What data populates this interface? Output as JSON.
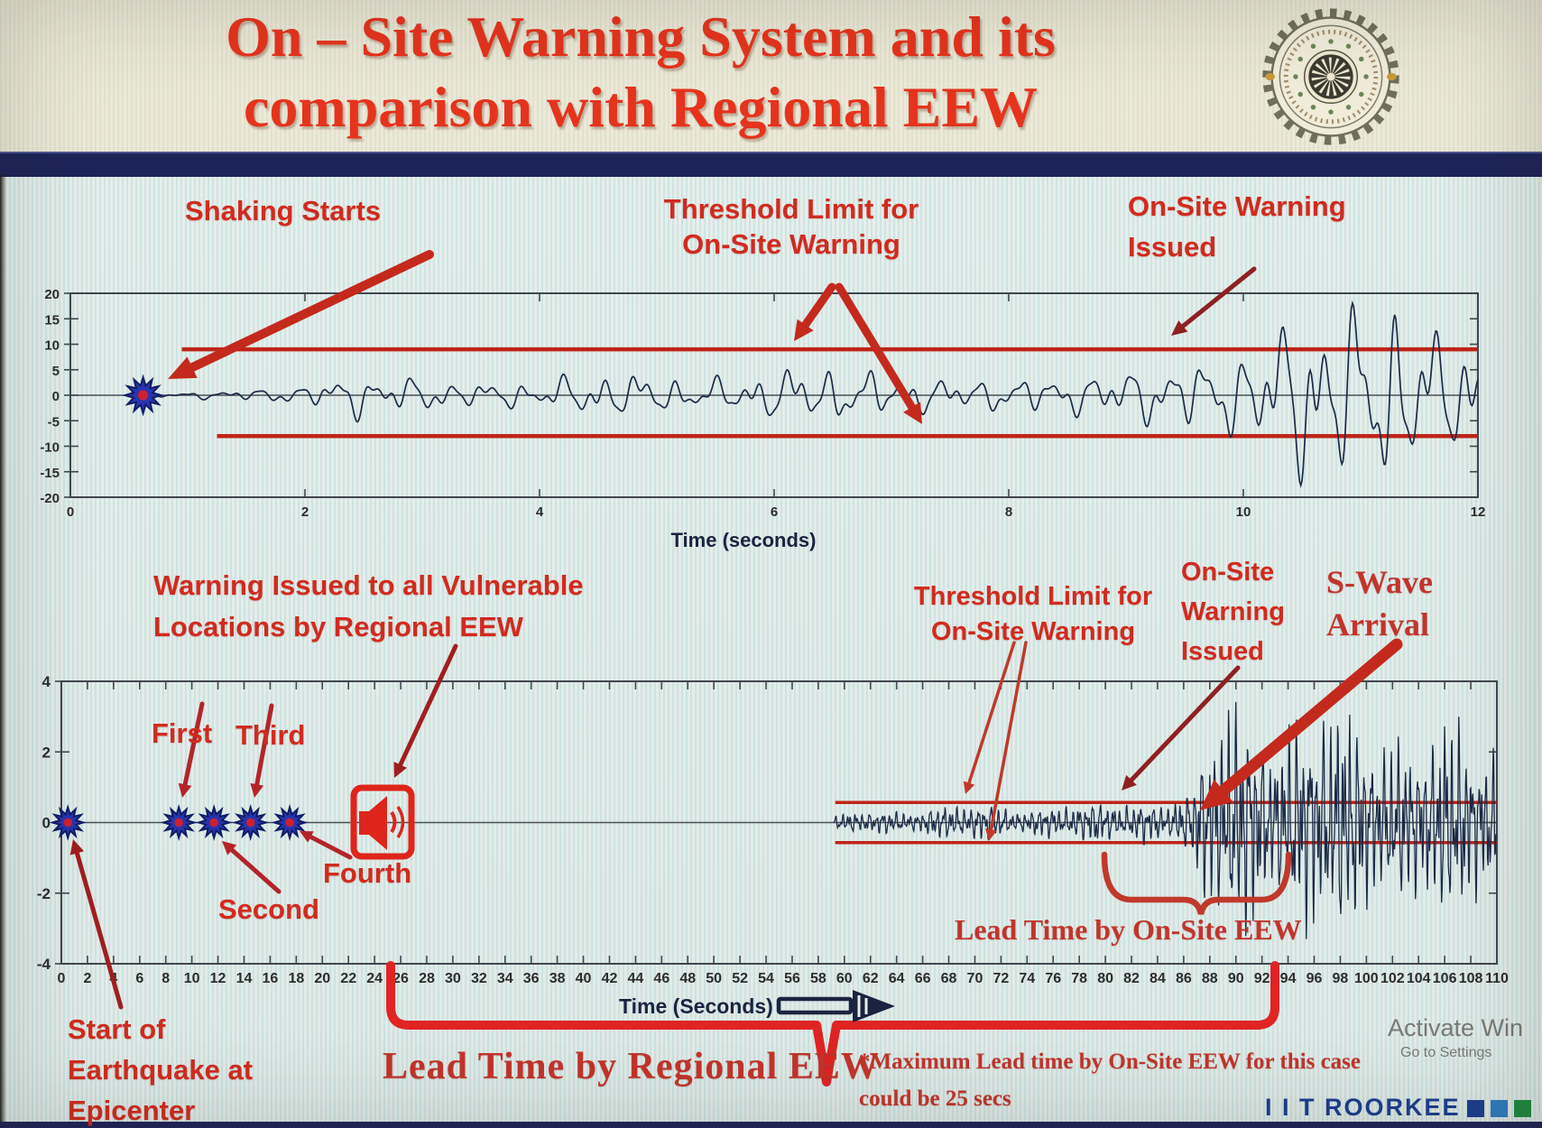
{
  "slide": {
    "title_line1": "On – Site Warning System and its",
    "title_line2": "comparison with Regional EEW"
  },
  "footer": {
    "brand": "I I T ROORKEE",
    "squares": [
      "#1c3e8e",
      "#2f7dc0",
      "#1f8a41"
    ]
  },
  "watermark": {
    "line1": "Activate Win",
    "line2": "Go to Settings"
  },
  "colors": {
    "accent_red": "#d22a1e",
    "serif_red": "#c2342c",
    "maroon_arrow": "#8f2023",
    "bright_arrow": "#c4291d",
    "threshold_red": "#bf2418",
    "navy_bar": "#1d2458",
    "navy_text": "#1a2340",
    "waveform": "#1c2a47",
    "iit_blue": "#1c3e8e"
  },
  "annotations": {
    "top": {
      "shaking_starts": "Shaking Starts",
      "threshold_l1": "Threshold Limit for",
      "threshold_l2": "On-Site Warning",
      "warning_l1": "On-Site Warning",
      "warning_l2": "Issued"
    },
    "bottom": {
      "regional_l1": "Warning Issued to all Vulnerable",
      "regional_l2": "Locations by Regional EEW",
      "first": "First",
      "second": "Second",
      "third": "Third",
      "fourth": "Fourth",
      "start_l1": "Start of",
      "start_l2": "Earthquake at",
      "start_l3": "Epicenter",
      "threshold_l1": "Threshold Limit for",
      "threshold_l2": "On-Site Warning",
      "warning_l1": "On-Site",
      "warning_l2": "Warning",
      "warning_l3": "Issued",
      "swave_l1": "S-Wave",
      "swave_l2": "Arrival",
      "lead_onsite": "Lead Time by On-Site EEW",
      "lead_regional": "Lead Time by Regional EEW",
      "note_l1": "*Maximum Lead time by On-Site EEW for this case",
      "note_l2": "could be 25 secs"
    }
  },
  "chart_data": [
    {
      "id": "onsite-accelerogram",
      "type": "line",
      "title": "",
      "xlabel": "Time (seconds)",
      "ylabel": "",
      "xlim": [
        0,
        12
      ],
      "ylim": [
        -20,
        20
      ],
      "xticks": [
        0,
        2,
        4,
        6,
        8,
        10,
        12
      ],
      "yticks": [
        20,
        15,
        10,
        5,
        0,
        -5,
        -10,
        -15,
        -20
      ],
      "grid": false,
      "threshold": {
        "upper": 9,
        "lower": -8,
        "color": "#bf2418",
        "start_t_upper": 0.95,
        "start_t_lower": 1.25
      },
      "events": {
        "shaking_starts_t": 0.62,
        "onsite_warning_issued_t": 9.3
      },
      "series": [
        {
          "name": "ground-acceleration",
          "color": "#1c2a47",
          "envelope": [
            [
              0.62,
              0.4
            ],
            [
              1.2,
              0.8
            ],
            [
              2.0,
              1.5
            ],
            [
              2.4,
              3.8
            ],
            [
              3.0,
              4.2
            ],
            [
              4.0,
              3.2
            ],
            [
              4.6,
              4.5
            ],
            [
              5.4,
              3.4
            ],
            [
              6.2,
              4.6
            ],
            [
              7.0,
              3.6
            ],
            [
              7.8,
              4.2
            ],
            [
              8.6,
              4.0
            ],
            [
              9.0,
              5.5
            ],
            [
              9.4,
              8.0
            ],
            [
              9.8,
              9.5
            ],
            [
              10.2,
              12
            ],
            [
              10.6,
              16
            ],
            [
              11.0,
              13
            ],
            [
              11.3,
              16.5
            ],
            [
              11.7,
              12
            ],
            [
              12,
              13
            ]
          ]
        }
      ]
    },
    {
      "id": "regional-vs-onsite-timeline",
      "type": "line",
      "title": "",
      "xlabel": "Time (Seconds)",
      "ylabel": "",
      "xlim": [
        0,
        110
      ],
      "ylim": [
        -4,
        4
      ],
      "xticks": [
        0,
        2,
        4,
        6,
        8,
        10,
        12,
        14,
        16,
        18,
        20,
        22,
        24,
        26,
        28,
        30,
        32,
        34,
        36,
        38,
        40,
        42,
        44,
        46,
        48,
        50,
        52,
        54,
        56,
        58,
        60,
        62,
        64,
        66,
        68,
        70,
        72,
        74,
        76,
        78,
        80,
        82,
        84,
        86,
        88,
        90,
        92,
        94,
        96,
        98,
        100,
        102,
        104,
        106,
        108,
        110
      ],
      "yticks": [
        4,
        2,
        0,
        -2,
        -4
      ],
      "grid": false,
      "threshold": {
        "upper": 0.57,
        "lower": -0.57,
        "color": "#bf2418",
        "start_t": 59.3
      },
      "events": {
        "epicenter_t": 0.5,
        "regional_warnings": [
          {
            "label": "First",
            "t": 9.0
          },
          {
            "label": "Second",
            "t": 11.7
          },
          {
            "label": "Third",
            "t": 14.5
          },
          {
            "label": "Fourth",
            "t": 17.5
          }
        ],
        "regional_broadcast_t": 24.6,
        "p_wave_arrival_t": 59.5,
        "onsite_warning_issued_t": 80,
        "s_wave_arrival_t": 88,
        "lead_time_regional_span": [
          25,
          93
        ],
        "lead_time_onsite_span": [
          79.5,
          93
        ],
        "max_onsite_lead_time": "25 secs"
      },
      "series": [
        {
          "name": "ground-motion",
          "color": "#1c2a47",
          "envelope": [
            [
              59.2,
              0.12
            ],
            [
              61,
              0.3
            ],
            [
              64,
              0.32
            ],
            [
              68,
              0.38
            ],
            [
              71,
              0.45
            ],
            [
              74,
              0.38
            ],
            [
              78,
              0.42
            ],
            [
              82,
              0.55
            ],
            [
              85,
              0.6
            ],
            [
              86.5,
              0.9
            ],
            [
              88,
              2.0
            ],
            [
              89.5,
              3.2
            ],
            [
              91,
              2.7
            ],
            [
              93,
              3.0
            ],
            [
              95,
              2.5
            ],
            [
              97,
              2.9
            ],
            [
              99,
              2.4
            ],
            [
              101,
              2.7
            ],
            [
              103,
              2.2
            ],
            [
              105,
              2.5
            ],
            [
              107,
              2.1
            ],
            [
              109,
              2.0
            ],
            [
              110,
              1.8
            ]
          ]
        }
      ]
    }
  ]
}
